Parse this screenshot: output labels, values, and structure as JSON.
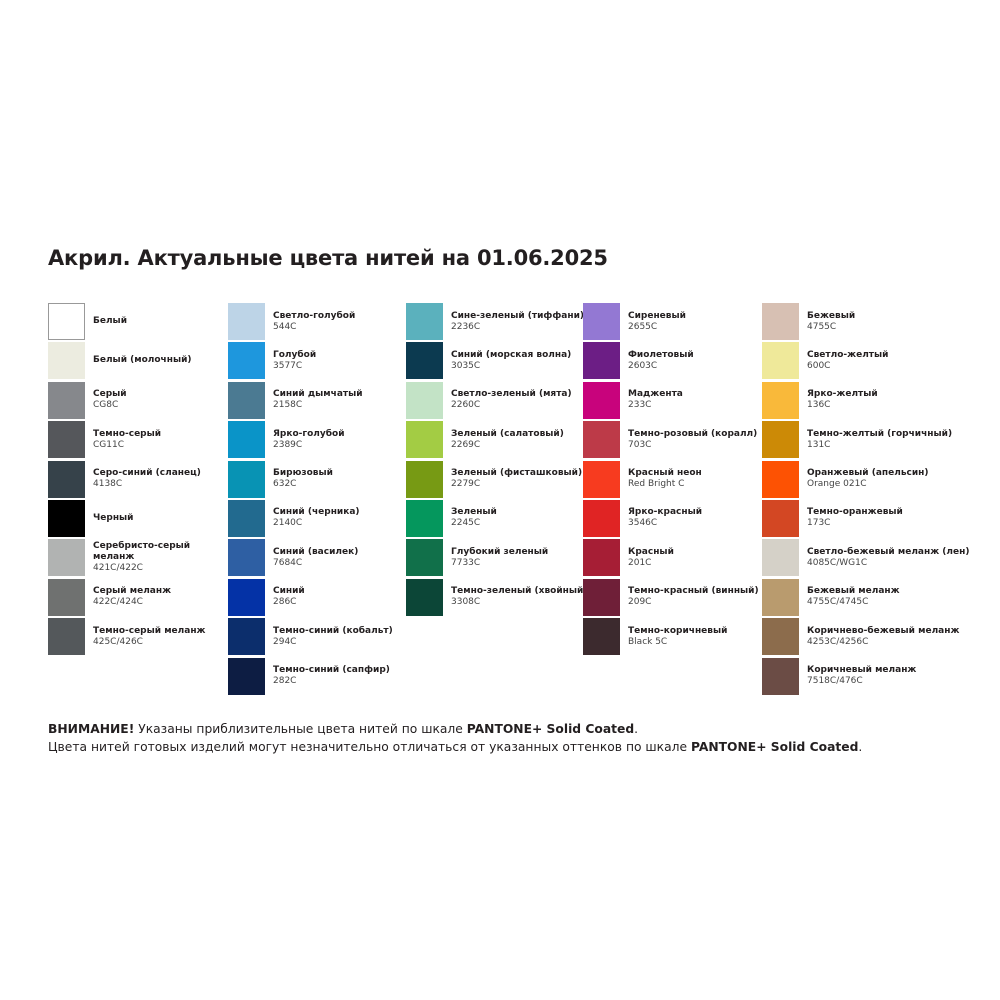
{
  "title": "Акрил. Актуальные цвета нитей на 01.06.2025",
  "columns": [
    [
      {
        "name": "Белый",
        "code": "",
        "color": "#ffffff"
      },
      {
        "name": "Белый (молочный)",
        "code": "",
        "color": "#ecece0"
      },
      {
        "name": "Серый",
        "code": "CG8C",
        "color": "#86888c"
      },
      {
        "name": "Темно-серый",
        "code": "CG11C",
        "color": "#55575b"
      },
      {
        "name": "Серо-синий (сланец)",
        "code": "4138C",
        "color": "#36424a"
      },
      {
        "name": "Черный",
        "code": "",
        "color": "#000000"
      },
      {
        "name": "Серебристо-серый меланж",
        "code": "421C/422C",
        "color": "#b1b3b2"
      },
      {
        "name": "Серый меланж",
        "code": "422C/424C",
        "color": "#6f7170"
      },
      {
        "name": "Темно-серый меланж",
        "code": "425C/426C",
        "color": "#54585b"
      }
    ],
    [
      {
        "name": "Светло-голубой",
        "code": "544C",
        "color": "#bdd4e7"
      },
      {
        "name": "Голубой",
        "code": "3577C",
        "color": "#1e97dd"
      },
      {
        "name": "Синий дымчатый",
        "code": "2158C",
        "color": "#4b7a92"
      },
      {
        "name": "Ярко-голубой",
        "code": "2389C",
        "color": "#0a94c8"
      },
      {
        "name": "Бирюзовый",
        "code": "632C",
        "color": "#0893b4"
      },
      {
        "name": "Синий (черника)",
        "code": "2140C",
        "color": "#226a8f"
      },
      {
        "name": "Синий (василек)",
        "code": "7684C",
        "color": "#2e5fa3"
      },
      {
        "name": "Синий",
        "code": "286C",
        "color": "#0432a6"
      },
      {
        "name": "Темно-синий (кобальт)",
        "code": "294C",
        "color": "#0c2e6c"
      },
      {
        "name": "Темно-синий (сапфир)",
        "code": "282C",
        "color": "#0d1d43"
      }
    ],
    [
      {
        "name": "Сине-зеленый (тиффани)",
        "code": "2236C",
        "color": "#5bb1bd"
      },
      {
        "name": "Синий (морская волна)",
        "code": "3035C",
        "color": "#0c3a50"
      },
      {
        "name": "Светло-зеленый (мята)",
        "code": "2260C",
        "color": "#c3e3c6"
      },
      {
        "name": "Зеленый (салатовый)",
        "code": "2269C",
        "color": "#a3cc44"
      },
      {
        "name": "Зеленый (фисташковый)",
        "code": "2279C",
        "color": "#779a14"
      },
      {
        "name": "Зеленый",
        "code": "2245C",
        "color": "#05975d"
      },
      {
        "name": "Глубокий зеленый",
        "code": "7733C",
        "color": "#11704a"
      },
      {
        "name": "Темно-зеленый (хвойный)",
        "code": "3308C",
        "color": "#0c4637"
      }
    ],
    [
      {
        "name": "Сиреневый",
        "code": "2655C",
        "color": "#9378d3"
      },
      {
        "name": "Фиолетовый",
        "code": "2603C",
        "color": "#6c1e85"
      },
      {
        "name": "Маджента",
        "code": "233C",
        "color": "#c8037c"
      },
      {
        "name": "Темно-розовый (коралл)",
        "code": "703C",
        "color": "#bd3a48"
      },
      {
        "name": "Красный неон",
        "code": "Red Bright C",
        "color": "#f73b1f"
      },
      {
        "name": "Ярко-красный",
        "code": "3546C",
        "color": "#e02424"
      },
      {
        "name": "Красный",
        "code": "201C",
        "color": "#a61e35"
      },
      {
        "name": "Темно-красный (винный)",
        "code": "209C",
        "color": "#6f1f38"
      },
      {
        "name": "Темно-коричневый",
        "code": "Black 5C",
        "color": "#3c2a2e"
      }
    ],
    [
      {
        "name": "Бежевый",
        "code": "4755C",
        "color": "#d7c0b3"
      },
      {
        "name": "Светло-желтый",
        "code": "600C",
        "color": "#efe99a"
      },
      {
        "name": "Ярко-желтый",
        "code": "136C",
        "color": "#f9b93a"
      },
      {
        "name": "Темно-желтый (горчичный)",
        "code": "131C",
        "color": "#cc8a06"
      },
      {
        "name": "Оранжевый (апельсин)",
        "code": "Orange 021C",
        "color": "#fd5203"
      },
      {
        "name": "Темно-оранжевый",
        "code": "173C",
        "color": "#d34723"
      },
      {
        "name": "Светло-бежевый меланж (лен)",
        "code": "4085C/WG1C",
        "color": "#d5d1c8"
      },
      {
        "name": "Бежевый меланж",
        "code": "4755C/4745C",
        "color": "#b99b6e"
      },
      {
        "name": "Коричнево-бежевый меланж",
        "code": "4253C/4256C",
        "color": "#8c6c4c"
      },
      {
        "name": "Коричневый меланж",
        "code": "7518C/476C",
        "color": "#6b4c45"
      }
    ]
  ],
  "notes": {
    "line1_bold": "ВНИМАНИЕ!",
    "line1_text": " Указаны приблизительные цвета нитей по шкале ",
    "line1_brand": "PANTONE+ Solid Coated",
    "line1_end": ".",
    "line2_text": "Цвета нитей готовых изделий могут незначительно отличаться от указанных оттенков по шкале ",
    "line2_brand": "PANTONE+ Solid Coated",
    "line2_end": "."
  }
}
